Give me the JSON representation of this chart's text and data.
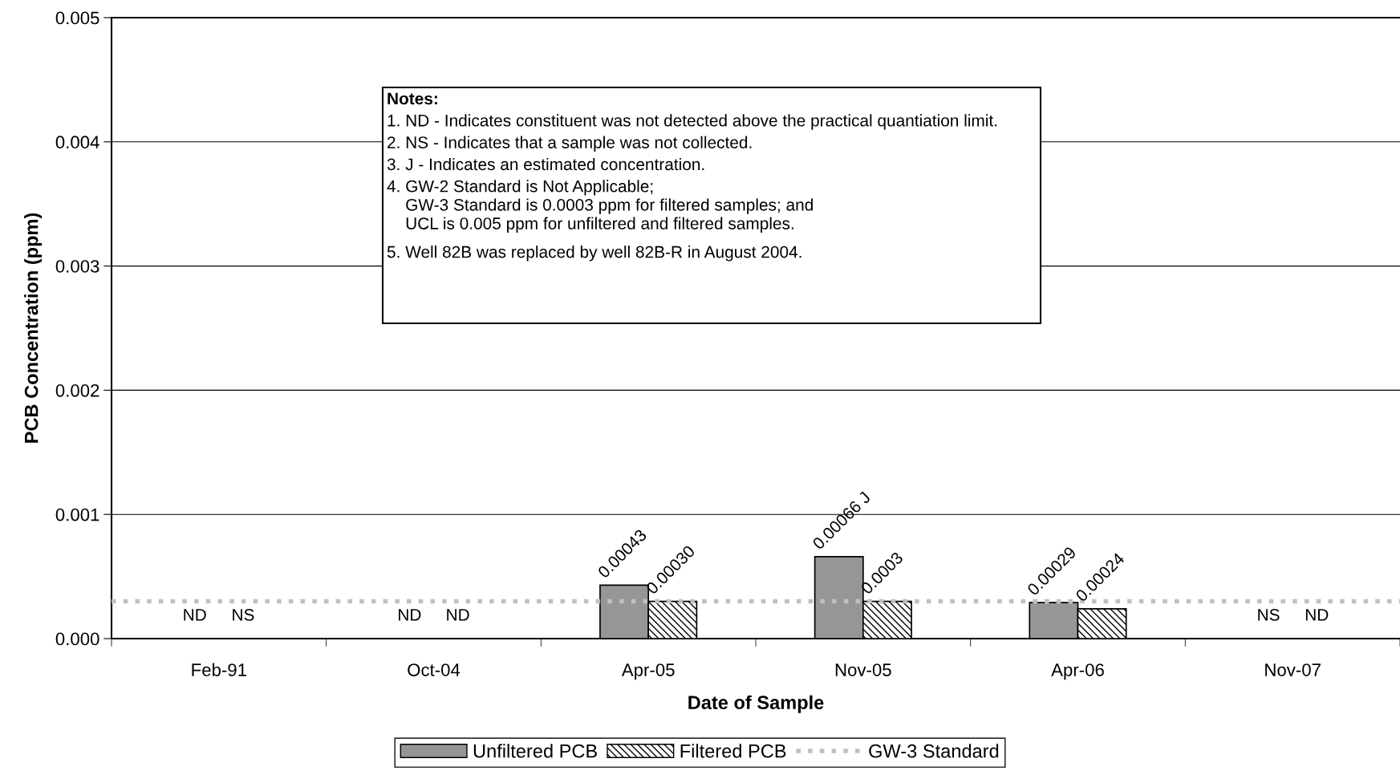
{
  "chart_data": {
    "type": "bar",
    "xlabel": "Date of Sample",
    "ylabel": "PCB Concentration (ppm)",
    "categories": [
      "Feb-91",
      "Oct-04",
      "Apr-05",
      "Nov-05",
      "Apr-06",
      "Nov-07"
    ],
    "series": [
      {
        "name": "Unfiltered PCB",
        "color": "#969696",
        "values": [
          null,
          null,
          0.00043,
          0.00066,
          0.00029,
          null
        ],
        "value_labels": [
          "ND",
          "ND",
          "0.00043",
          "0.00066 J",
          "0.00029",
          "NS"
        ]
      },
      {
        "name": "Filtered PCB",
        "color": "#000000",
        "values": [
          null,
          null,
          0.0003,
          0.0003,
          0.00024,
          null
        ],
        "value_labels": [
          "NS",
          "ND",
          "0.00030",
          "0.0003",
          "0.00024",
          "ND"
        ]
      }
    ],
    "ylim": [
      0,
      0.005
    ],
    "yticks": [
      {
        "value": 0,
        "label": "0.000"
      },
      {
        "value": 0.001,
        "label": "0.001"
      },
      {
        "value": 0.002,
        "label": "0.002"
      },
      {
        "value": 0.003,
        "label": "0.003"
      },
      {
        "value": 0.004,
        "label": "0.004"
      },
      {
        "value": 0.005,
        "label": "0.005"
      }
    ],
    "grid": "y",
    "legend": "bottom",
    "ref_lines": [
      {
        "axis": "y",
        "value": 0.0003,
        "label": "GW-3 Standard",
        "color": "#c0c0c0",
        "line_style": "dotted"
      }
    ],
    "annotations": [
      "Notes:",
      "1. ND - Indicates constituent was not detected above the practical quantiation limit.",
      "2. NS - Indicates that a sample was not collected.",
      "3. J - Indicates an estimated concentration.",
      "4. GW-2 Standard is Not Applicable;\n    GW-3 Standard is 0.0003 ppm for filtered samples; and\n    UCL is 0.005 ppm for unfiltered and filtered samples.",
      "5. Well 82B was replaced by well 82B-R in August 2004."
    ]
  }
}
